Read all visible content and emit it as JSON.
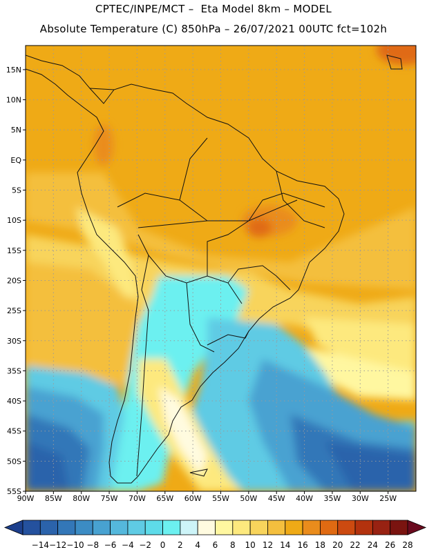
{
  "header": {
    "title_line1": "CPTEC/INPE/MCT –  Eta Model 8km – MODEL",
    "title_line2": "Absolute Temperature (C) 850hPa – 26/07/2021 00UTC fct=102h"
  },
  "map": {
    "lat_labels": [
      "15N",
      "10N",
      "5N",
      "EQ",
      "5S",
      "10S",
      "15S",
      "20S",
      "25S",
      "30S",
      "35S",
      "40S",
      "45S",
      "50S",
      "55S"
    ],
    "lon_labels": [
      "90W",
      "85W",
      "80W",
      "75W",
      "70W",
      "65W",
      "60W",
      "55W",
      "50W",
      "45W",
      "40W",
      "35W",
      "30W",
      "25W"
    ],
    "lon_range": [
      -90,
      -20
    ],
    "lat_range": [
      -55,
      19
    ]
  },
  "colorbar": {
    "ticks": [
      "-14",
      "-12",
      "-10",
      "-8",
      "-6",
      "-4",
      "-2",
      "0",
      "2",
      "4",
      "6",
      "8",
      "10",
      "12",
      "14",
      "16",
      "18",
      "20",
      "22",
      "24",
      "26",
      "28"
    ],
    "colors": [
      "#1c3f8c",
      "#24519e",
      "#2b63ab",
      "#3377b8",
      "#3c8cc4",
      "#48a2d1",
      "#55b8dc",
      "#5fcbe4",
      "#5edbe9",
      "#6cf0f0",
      "#cdf4f8",
      "#fffbe0",
      "#fff7a0",
      "#fde97e",
      "#f8d45c",
      "#f4bf3e",
      "#efaa16",
      "#ea8c1c",
      "#e06a12",
      "#cc4a10",
      "#b3320e",
      "#982212",
      "#7a1410",
      "#6a0a1e"
    ]
  }
}
